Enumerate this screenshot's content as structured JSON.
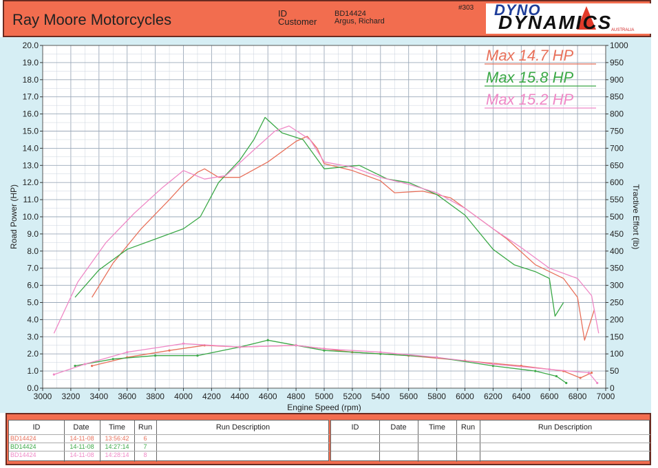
{
  "header": {
    "company": "Ray Moore Motorcycles",
    "id_label": "ID",
    "customer_label": "Customer",
    "id_value": "BD14424",
    "customer_value": "Argus, Richard",
    "sheet_no": "#303",
    "logo_top": "DYNO",
    "logo_bottom": "DYNAMICS",
    "logo_small": "AUSTRALIA"
  },
  "annotations": [
    {
      "text": "Max 14.7 HP",
      "color": "#e8705a"
    },
    {
      "text": "Max 15.8 HP",
      "color": "#3aa846"
    },
    {
      "text": "Max 15.2 HP",
      "color": "#ef88c6"
    }
  ],
  "colors": {
    "red": "#e8705a",
    "green": "#3aa846",
    "pink": "#ef88c6",
    "panel": "#d6eef4",
    "frame": "#f26d4f"
  },
  "chart_data": {
    "type": "line",
    "xlabel": "Engine Speed (rpm)",
    "ylabel": "Road Power (HP)",
    "y2label": "Tractive Effort (lb)",
    "xlim": [
      3000,
      7000
    ],
    "ylim": [
      0,
      20
    ],
    "y2lim": [
      0,
      1000
    ],
    "xticks": [
      "3000",
      "3200",
      "3400",
      "3600",
      "3800",
      "4000",
      "4200",
      "4400",
      "4600",
      "4800",
      "5000",
      "5200",
      "5400",
      "5600",
      "5800",
      "6000",
      "6200",
      "6400",
      "6600",
      "6800",
      "7000"
    ],
    "yticks": [
      "0.0",
      "1.0",
      "2.0",
      "3.0",
      "4.0",
      "5.0",
      "6.0",
      "7.0",
      "8.0",
      "9.0",
      "10.0",
      "11.0",
      "12.0",
      "13.0",
      "14.0",
      "15.0",
      "16.0",
      "17.0",
      "18.0",
      "19.0",
      "20.0"
    ],
    "y2ticks": [
      "0",
      "50",
      "100",
      "150",
      "200",
      "250",
      "300",
      "350",
      "400",
      "450",
      "500",
      "550",
      "600",
      "650",
      "700",
      "750",
      "800",
      "850",
      "900",
      "950",
      "1000"
    ],
    "grid": true,
    "series": [
      {
        "run": "6",
        "color": "#e8705a",
        "power": [
          [
            3350,
            5.3
          ],
          [
            3500,
            7.3
          ],
          [
            3700,
            9.3
          ],
          [
            3900,
            11.0
          ],
          [
            4000,
            11.9
          ],
          [
            4100,
            12.6
          ],
          [
            4150,
            12.8
          ],
          [
            4250,
            12.3
          ],
          [
            4400,
            12.3
          ],
          [
            4600,
            13.2
          ],
          [
            4800,
            14.4
          ],
          [
            4880,
            14.7
          ],
          [
            4950,
            14.0
          ],
          [
            5000,
            13.1
          ],
          [
            5200,
            12.7
          ],
          [
            5400,
            12.1
          ],
          [
            5500,
            11.4
          ],
          [
            5700,
            11.5
          ],
          [
            5900,
            11.1
          ],
          [
            6100,
            9.9
          ],
          [
            6300,
            8.7
          ],
          [
            6500,
            7.2
          ],
          [
            6700,
            6.4
          ],
          [
            6800,
            5.3
          ],
          [
            6850,
            2.8
          ],
          [
            6920,
            4.6
          ]
        ],
        "effort": [
          [
            3350,
            1.3
          ],
          [
            3600,
            1.8
          ],
          [
            3900,
            2.2
          ],
          [
            4150,
            2.5
          ],
          [
            4400,
            2.4
          ],
          [
            4800,
            2.5
          ],
          [
            5000,
            2.3
          ],
          [
            5200,
            2.1
          ],
          [
            5600,
            1.9
          ],
          [
            6000,
            1.6
          ],
          [
            6400,
            1.3
          ],
          [
            6700,
            1.0
          ],
          [
            6820,
            0.6
          ],
          [
            6900,
            0.9
          ]
        ]
      },
      {
        "run": "7",
        "color": "#3aa846",
        "power": [
          [
            3230,
            5.3
          ],
          [
            3400,
            6.9
          ],
          [
            3600,
            8.1
          ],
          [
            3800,
            8.7
          ],
          [
            4000,
            9.3
          ],
          [
            4120,
            10.0
          ],
          [
            4250,
            12.0
          ],
          [
            4400,
            13.3
          ],
          [
            4500,
            14.5
          ],
          [
            4580,
            15.8
          ],
          [
            4700,
            14.9
          ],
          [
            4850,
            14.5
          ],
          [
            5000,
            12.8
          ],
          [
            5250,
            13.0
          ],
          [
            5450,
            12.2
          ],
          [
            5600,
            12.0
          ],
          [
            5800,
            11.3
          ],
          [
            6000,
            10.1
          ],
          [
            6200,
            8.1
          ],
          [
            6350,
            7.2
          ],
          [
            6500,
            6.8
          ],
          [
            6600,
            6.4
          ],
          [
            6640,
            4.2
          ],
          [
            6700,
            5.0
          ]
        ],
        "effort": [
          [
            3230,
            1.3
          ],
          [
            3500,
            1.7
          ],
          [
            3800,
            1.9
          ],
          [
            4100,
            1.9
          ],
          [
            4400,
            2.4
          ],
          [
            4600,
            2.8
          ],
          [
            4800,
            2.5
          ],
          [
            5000,
            2.2
          ],
          [
            5400,
            2.0
          ],
          [
            5800,
            1.8
          ],
          [
            6200,
            1.3
          ],
          [
            6500,
            1.0
          ],
          [
            6650,
            0.7
          ],
          [
            6720,
            0.3
          ]
        ]
      },
      {
        "run": "8",
        "color": "#ef88c6",
        "power": [
          [
            3080,
            3.2
          ],
          [
            3250,
            6.2
          ],
          [
            3450,
            8.5
          ],
          [
            3650,
            10.2
          ],
          [
            3850,
            11.7
          ],
          [
            4000,
            12.7
          ],
          [
            4150,
            12.2
          ],
          [
            4300,
            12.4
          ],
          [
            4500,
            13.9
          ],
          [
            4650,
            15.0
          ],
          [
            4750,
            15.3
          ],
          [
            4900,
            14.5
          ],
          [
            5000,
            13.2
          ],
          [
            5200,
            12.9
          ],
          [
            5400,
            12.3
          ],
          [
            5600,
            11.9
          ],
          [
            5800,
            11.4
          ],
          [
            6000,
            10.5
          ],
          [
            6200,
            9.3
          ],
          [
            6400,
            8.2
          ],
          [
            6600,
            7.0
          ],
          [
            6800,
            6.4
          ],
          [
            6900,
            5.4
          ],
          [
            6950,
            3.2
          ]
        ],
        "effort": [
          [
            3080,
            0.8
          ],
          [
            3300,
            1.4
          ],
          [
            3600,
            2.1
          ],
          [
            4000,
            2.6
          ],
          [
            4400,
            2.4
          ],
          [
            4800,
            2.5
          ],
          [
            5000,
            2.3
          ],
          [
            5400,
            2.1
          ],
          [
            5800,
            1.8
          ],
          [
            6200,
            1.4
          ],
          [
            6600,
            1.1
          ],
          [
            6880,
            0.9
          ],
          [
            6940,
            0.3
          ]
        ]
      }
    ]
  },
  "run_table": {
    "headers": [
      "ID",
      "Date",
      "Time",
      "Run",
      "Run Description"
    ],
    "headers_right": [
      "ID",
      "Date",
      "Time",
      "Run",
      "Run Description"
    ],
    "rows": [
      {
        "id": "BD14424",
        "date": "14-11-08",
        "time": "13:56:42",
        "run": "6",
        "color": "#e8705a"
      },
      {
        "id": "BD14424",
        "date": "14-11-08",
        "time": "14:27:14",
        "run": "7",
        "color": "#3aa846"
      },
      {
        "id": "BD14424",
        "date": "14-11-08",
        "time": "14:28:14",
        "run": "8",
        "color": "#ef88c6"
      }
    ]
  }
}
